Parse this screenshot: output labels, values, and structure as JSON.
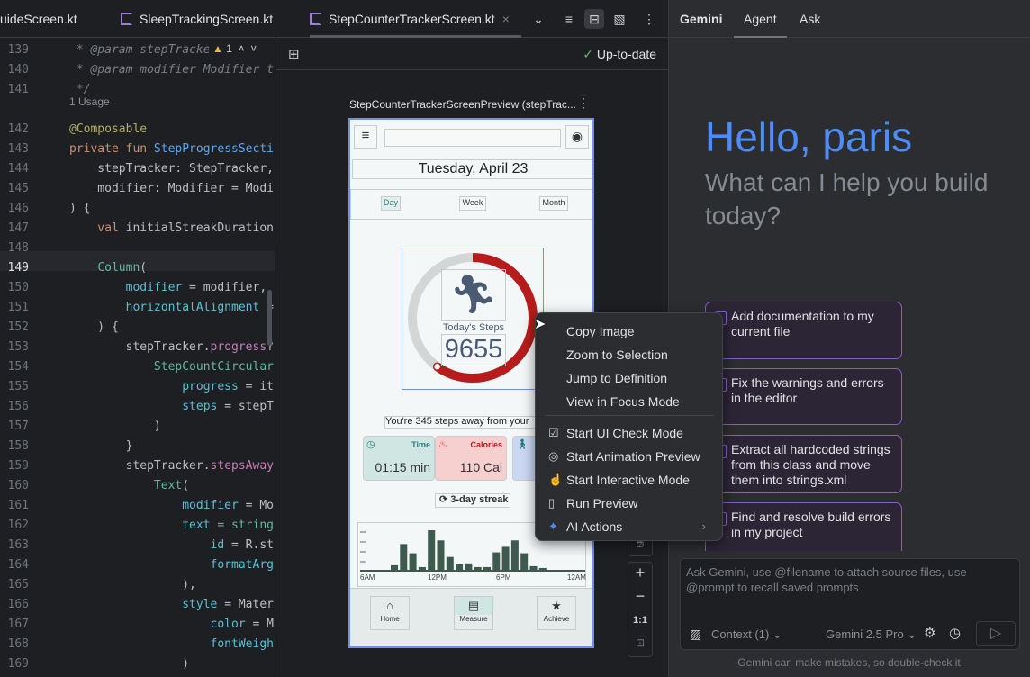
{
  "tabs": {
    "items": [
      {
        "label": "uideScreen.kt"
      },
      {
        "label": "SleepTrackingScreen.kt"
      },
      {
        "label": "StepCounterTrackerScreen.kt",
        "active": true
      }
    ]
  },
  "editor": {
    "warning_count": "1",
    "usage": "1 Usage",
    "lines": [
      {
        "n": "139",
        "s": [
          {
            "t": " * ",
            "k": "cm"
          },
          {
            "t": "@param",
            "k": "cm"
          },
          {
            "t": " stepTracke",
            "k": "cm"
          }
        ]
      },
      {
        "n": "140",
        "s": [
          {
            "t": " * @param modifier Modifier t",
            "k": "cm"
          }
        ]
      },
      {
        "n": "141",
        "s": [
          {
            "t": " */",
            "k": "cm"
          }
        ]
      },
      {
        "n": "142",
        "s": [
          {
            "t": "@Composable",
            "k": "an"
          }
        ]
      },
      {
        "n": "143",
        "s": [
          {
            "t": "private fun ",
            "k": "kw"
          },
          {
            "t": "StepProgressSecti",
            "k": "fn"
          }
        ]
      },
      {
        "n": "144",
        "s": [
          {
            "t": "    stepTracker: StepTracker,",
            "k": ""
          }
        ]
      },
      {
        "n": "145",
        "s": [
          {
            "t": "    modifier: Modifier = Modi",
            "k": ""
          }
        ]
      },
      {
        "n": "146",
        "s": [
          {
            "t": ") {",
            "k": ""
          }
        ]
      },
      {
        "n": "147",
        "s": [
          {
            "t": "    val ",
            "k": "kw"
          },
          {
            "t": "initialStreakDuration",
            "k": ""
          }
        ]
      },
      {
        "n": "148",
        "s": []
      },
      {
        "n": "149",
        "s": [
          {
            "t": "    ",
            "k": ""
          },
          {
            "t": "Column",
            "k": "cl"
          },
          {
            "t": "(",
            "k": ""
          }
        ]
      },
      {
        "n": "150",
        "s": [
          {
            "t": "        modifier",
            "k": "pa"
          },
          {
            "t": " = modifier,",
            "k": ""
          }
        ]
      },
      {
        "n": "151",
        "s": [
          {
            "t": "        horizontalAlignment",
            "k": "pa"
          },
          {
            "t": " =",
            "k": ""
          }
        ]
      },
      {
        "n": "152",
        "s": [
          {
            "t": "    ) {",
            "k": ""
          }
        ]
      },
      {
        "n": "153",
        "s": [
          {
            "t": "        stepTracker.",
            "k": ""
          },
          {
            "t": "progress",
            "k": "pr"
          },
          {
            "t": "?",
            "k": ""
          }
        ]
      },
      {
        "n": "154",
        "s": [
          {
            "t": "            StepCountCircular",
            "k": "cl"
          }
        ]
      },
      {
        "n": "155",
        "s": [
          {
            "t": "                progress",
            "k": "pa"
          },
          {
            "t": " = it",
            "k": ""
          }
        ]
      },
      {
        "n": "156",
        "s": [
          {
            "t": "                steps",
            "k": "pa"
          },
          {
            "t": " = stepTr",
            "k": ""
          }
        ]
      },
      {
        "n": "157",
        "s": [
          {
            "t": "            )",
            "k": ""
          }
        ]
      },
      {
        "n": "158",
        "s": [
          {
            "t": "        }",
            "k": ""
          }
        ]
      },
      {
        "n": "159",
        "s": [
          {
            "t": "        stepTracker.",
            "k": ""
          },
          {
            "t": "stepsAway",
            "k": "pr"
          }
        ]
      },
      {
        "n": "160",
        "s": [
          {
            "t": "            Text",
            "k": "cl"
          },
          {
            "t": "(",
            "k": ""
          }
        ]
      },
      {
        "n": "161",
        "s": [
          {
            "t": "                modifier",
            "k": "pa"
          },
          {
            "t": " = Mo",
            "k": ""
          }
        ]
      },
      {
        "n": "162",
        "s": [
          {
            "t": "                text",
            "k": "pa"
          },
          {
            "t": " = string",
            "k": "cl"
          }
        ]
      },
      {
        "n": "163",
        "s": [
          {
            "t": "                    id",
            "k": "pa"
          },
          {
            "t": " = R.st",
            "k": ""
          }
        ]
      },
      {
        "n": "164",
        "s": [
          {
            "t": "                    formatArgs",
            "k": "pa"
          }
        ]
      },
      {
        "n": "165",
        "s": [
          {
            "t": "                ),",
            "k": ""
          }
        ]
      },
      {
        "n": "166",
        "s": [
          {
            "t": "                style",
            "k": "pa"
          },
          {
            "t": " = Mater",
            "k": ""
          }
        ]
      },
      {
        "n": "167",
        "s": [
          {
            "t": "                    color",
            "k": "pa"
          },
          {
            "t": " = Ma",
            "k": ""
          }
        ]
      },
      {
        "n": "168",
        "s": [
          {
            "t": "                    fontWeight",
            "k": "pa"
          }
        ]
      },
      {
        "n": "169",
        "s": [
          {
            "t": "                )",
            "k": ""
          }
        ]
      },
      {
        "n": "170",
        "s": [
          {
            "t": "            )",
            "k": ""
          }
        ]
      }
    ]
  },
  "preview": {
    "status": "Up-to-date",
    "title": "StepCounterTrackerScreenPreview (stepTrac...",
    "phone": {
      "date": "Tuesday, April 23",
      "tabs": [
        "Day",
        "Week",
        "Month"
      ],
      "progress_label": "Today's Steps",
      "steps": "9655",
      "progress_fraction": 0.6,
      "steps_away": "You're 345 steps away from your",
      "stats": [
        {
          "label": "Time",
          "value": "01:15 min",
          "color": "#cfe6e2"
        },
        {
          "label": "Calories",
          "value": "110 Cal",
          "color": "#f6cfcf"
        },
        {
          "label": "",
          "value": "",
          "color": "#cbd8f4"
        }
      ],
      "streak": "3-day streak",
      "chart_labels": [
        "6AM",
        "12PM",
        "6PM",
        "12AM"
      ],
      "chart_values": [
        5,
        28,
        18,
        3,
        43,
        32,
        14,
        6,
        7,
        3,
        3,
        19,
        25,
        32,
        18,
        4,
        2
      ],
      "nav": [
        "Home",
        "Measure",
        "Achieve"
      ]
    },
    "zoom_controls": {
      "plus": "+",
      "minus": "−",
      "ratio": "1:1"
    }
  },
  "context_menu": {
    "items": [
      {
        "label": "Copy Image",
        "icon": ""
      },
      {
        "label": "Zoom to Selection",
        "icon": ""
      },
      {
        "label": "Jump to Definition",
        "icon": ""
      },
      {
        "label": "View in Focus Mode",
        "icon": ""
      },
      {
        "label": "Start UI Check Mode",
        "icon": "ui-check-icon"
      },
      {
        "label": "Start Animation Preview",
        "icon": "animation-icon"
      },
      {
        "label": "Start Interactive Mode",
        "icon": "interactive-icon"
      },
      {
        "label": "Run Preview",
        "icon": "run-preview-icon"
      },
      {
        "label": "AI Actions",
        "icon": "ai-sparkle-icon",
        "submenu": true
      }
    ]
  },
  "gemini": {
    "tabs": [
      {
        "label": "Gemini"
      },
      {
        "label": "Agent",
        "active": true
      },
      {
        "label": "Ask"
      }
    ],
    "greeting": "Hello, paris",
    "subtitle": "What can I help you build today?",
    "suggestions": [
      "Add documentation to my current file",
      "Fix the warnings and errors in the editor",
      "Extract all hardcoded strings from this class and move them into strings.xml",
      "Find and resolve build errors in my project"
    ],
    "input_placeholder": "Ask Gemini, use @filename to attach source files, use @prompt to recall saved prompts",
    "context": "Context (1)",
    "model": "Gemini 2.5 Pro",
    "disclaimer": "Gemini can make mistakes, so double-check it",
    "accent": "#4f8cf7"
  }
}
